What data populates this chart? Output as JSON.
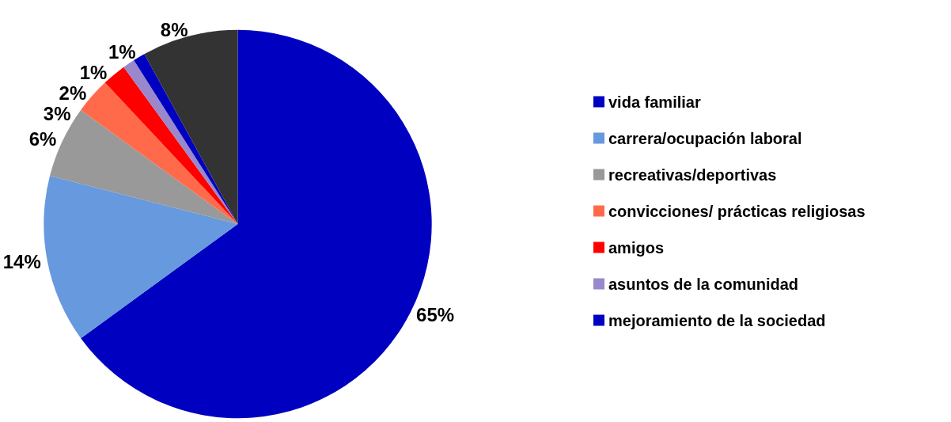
{
  "chart_data": {
    "type": "pie",
    "categories": [
      "vida familiar",
      "carrera/ocupación laboral",
      "recreativas/deportivas",
      "convicciones/ prácticas religiosas",
      "amigos",
      "asuntos de la comunidad",
      "mejoramiento de la sociedad",
      null
    ],
    "values": [
      65,
      14,
      6,
      3,
      2,
      1,
      1,
      8
    ],
    "colors": [
      "#0000c0",
      "#6699dd",
      "#999999",
      "#ff6b4a",
      "#ff0000",
      "#9988cc",
      "#0000c0",
      "#333333"
    ],
    "value_labels": [
      "65%",
      "14%",
      "6%",
      "3%",
      "2%",
      "1%",
      "1%",
      "8%"
    ],
    "legend": "right"
  }
}
